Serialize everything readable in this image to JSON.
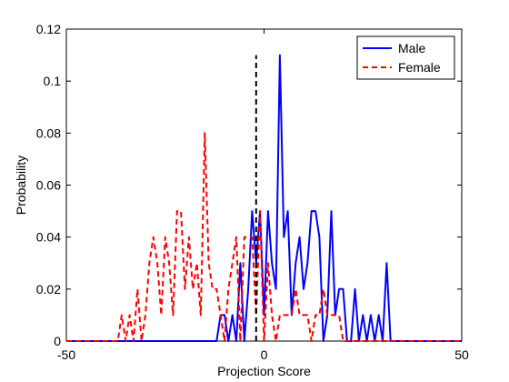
{
  "chart_data": {
    "type": "line",
    "xlabel": "Projection Score",
    "ylabel": "Probability",
    "xlim": [
      -50,
      50
    ],
    "ylim": [
      0,
      0.12
    ],
    "xticks": [
      -50,
      0,
      50
    ],
    "yticks": [
      0,
      0.02,
      0.04,
      0.06,
      0.08,
      0.1,
      0.12
    ],
    "xtick_labels": [
      "-50",
      "0",
      "50"
    ],
    "ytick_labels": [
      "0",
      "0.02",
      "0.04",
      "0.06",
      "0.08",
      "0.1",
      "0.12"
    ],
    "grid": false,
    "legend_position": "top-right",
    "threshold": {
      "x": -2,
      "y": [
        0,
        0.11
      ],
      "color": "#000000",
      "style": "dashed"
    },
    "series": [
      {
        "name": "Male",
        "color": "#0000ff",
        "style": "solid",
        "x": [
          -50,
          -12,
          -11,
          -10,
          -9,
          -8,
          -7,
          -6,
          -5,
          -4,
          -3,
          -2,
          -1,
          0,
          1,
          2,
          3,
          4,
          5,
          6,
          7,
          8,
          9,
          10,
          11,
          12,
          13,
          14,
          15,
          16,
          17,
          18,
          19,
          20,
          21,
          22,
          23,
          24,
          25,
          26,
          27,
          28,
          29,
          30,
          31,
          32,
          33,
          50
        ],
        "y": [
          0,
          0,
          0.01,
          0.01,
          0,
          0.01,
          0,
          0.03,
          0,
          0.02,
          0.05,
          0.03,
          0.05,
          0.01,
          0.05,
          0.03,
          0.02,
          0.11,
          0.04,
          0.05,
          0.01,
          0.03,
          0.04,
          0.02,
          0.03,
          0.05,
          0.05,
          0.04,
          0,
          0.01,
          0.05,
          0.01,
          0.02,
          0.02,
          0,
          0,
          0.02,
          0,
          0.01,
          0.0,
          0.01,
          0,
          0.01,
          0,
          0.03,
          0,
          0,
          0
        ]
      },
      {
        "name": "Female",
        "color": "#ff0000",
        "style": "dashed",
        "x": [
          -50,
          -37,
          -36,
          -35,
          -34,
          -33,
          -32,
          -31,
          -30,
          -29,
          -28,
          -27,
          -26,
          -25,
          -24,
          -23,
          -22,
          -21,
          -20,
          -19,
          -18,
          -17,
          -16,
          -15,
          -14,
          -13,
          -12,
          -11,
          -10,
          -9,
          -8,
          -7,
          -6,
          -5,
          -4,
          -3,
          -2,
          -1,
          0,
          1,
          2,
          3,
          4,
          5,
          6,
          7,
          8,
          9,
          10,
          11,
          12,
          13,
          14,
          15,
          16,
          17,
          18,
          19,
          20,
          21,
          22,
          23,
          50
        ],
        "y": [
          0,
          0,
          0.01,
          0,
          0.01,
          0,
          0.02,
          0,
          0.01,
          0.03,
          0.04,
          0.03,
          0.01,
          0.04,
          0.03,
          0.01,
          0.05,
          0.05,
          0.02,
          0.04,
          0.02,
          0.03,
          0.01,
          0.08,
          0.03,
          0.02,
          0.02,
          0.01,
          0,
          0.02,
          0.03,
          0.04,
          0,
          0.04,
          0.04,
          0.04,
          0.01,
          0.05,
          0,
          0.03,
          0.01,
          0,
          0.01,
          0.01,
          0.01,
          0.01,
          0.02,
          0.01,
          0.01,
          0.01,
          0,
          0.01,
          0.01,
          0.02,
          0.01,
          0.01,
          0.01,
          0.01,
          0,
          0,
          0,
          0,
          0
        ]
      }
    ]
  }
}
